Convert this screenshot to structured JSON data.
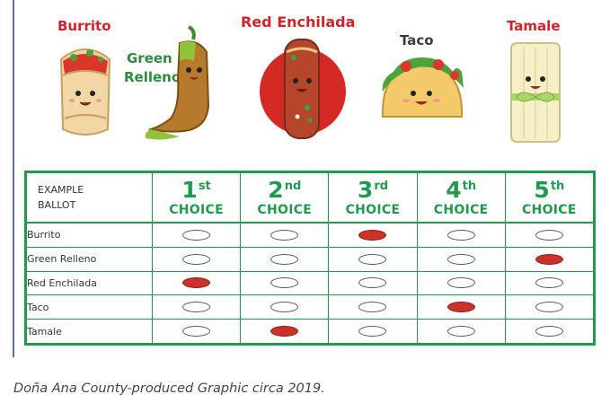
{
  "foods": {
    "burrito": "Burrito",
    "green_relleno_line1": "Green",
    "green_relleno_line2": "Relleno",
    "red_enchilada": "Red Enchilada",
    "taco": "Taco",
    "tamale": "Tamale"
  },
  "ballot": {
    "header_line1": "EXAMPLE",
    "header_line2": "BALLOT",
    "choices": [
      {
        "num": "1",
        "suffix": "st",
        "word": "CHOICE"
      },
      {
        "num": "2",
        "suffix": "nd",
        "word": "CHOICE"
      },
      {
        "num": "3",
        "suffix": "rd",
        "word": "CHOICE"
      },
      {
        "num": "4",
        "suffix": "th",
        "word": "CHOICE"
      },
      {
        "num": "5",
        "suffix": "th",
        "word": "CHOICE"
      }
    ],
    "rows": [
      {
        "name": "Burrito",
        "marks": [
          false,
          false,
          true,
          false,
          false
        ]
      },
      {
        "name": "Green Relleno",
        "marks": [
          false,
          false,
          false,
          false,
          true
        ]
      },
      {
        "name": "Red Enchilada",
        "marks": [
          true,
          false,
          false,
          false,
          false
        ]
      },
      {
        "name": "Taco",
        "marks": [
          false,
          false,
          false,
          true,
          false
        ]
      },
      {
        "name": "Tamale",
        "marks": [
          false,
          true,
          false,
          false,
          false
        ]
      }
    ]
  },
  "colors": {
    "ballot_green": "#1f9b4d",
    "mark_red": "#c9332a",
    "label_red": "#d2232a",
    "label_green": "#2e8b3d"
  },
  "caption": "Doña Ana County-produced Graphic circa 2019."
}
